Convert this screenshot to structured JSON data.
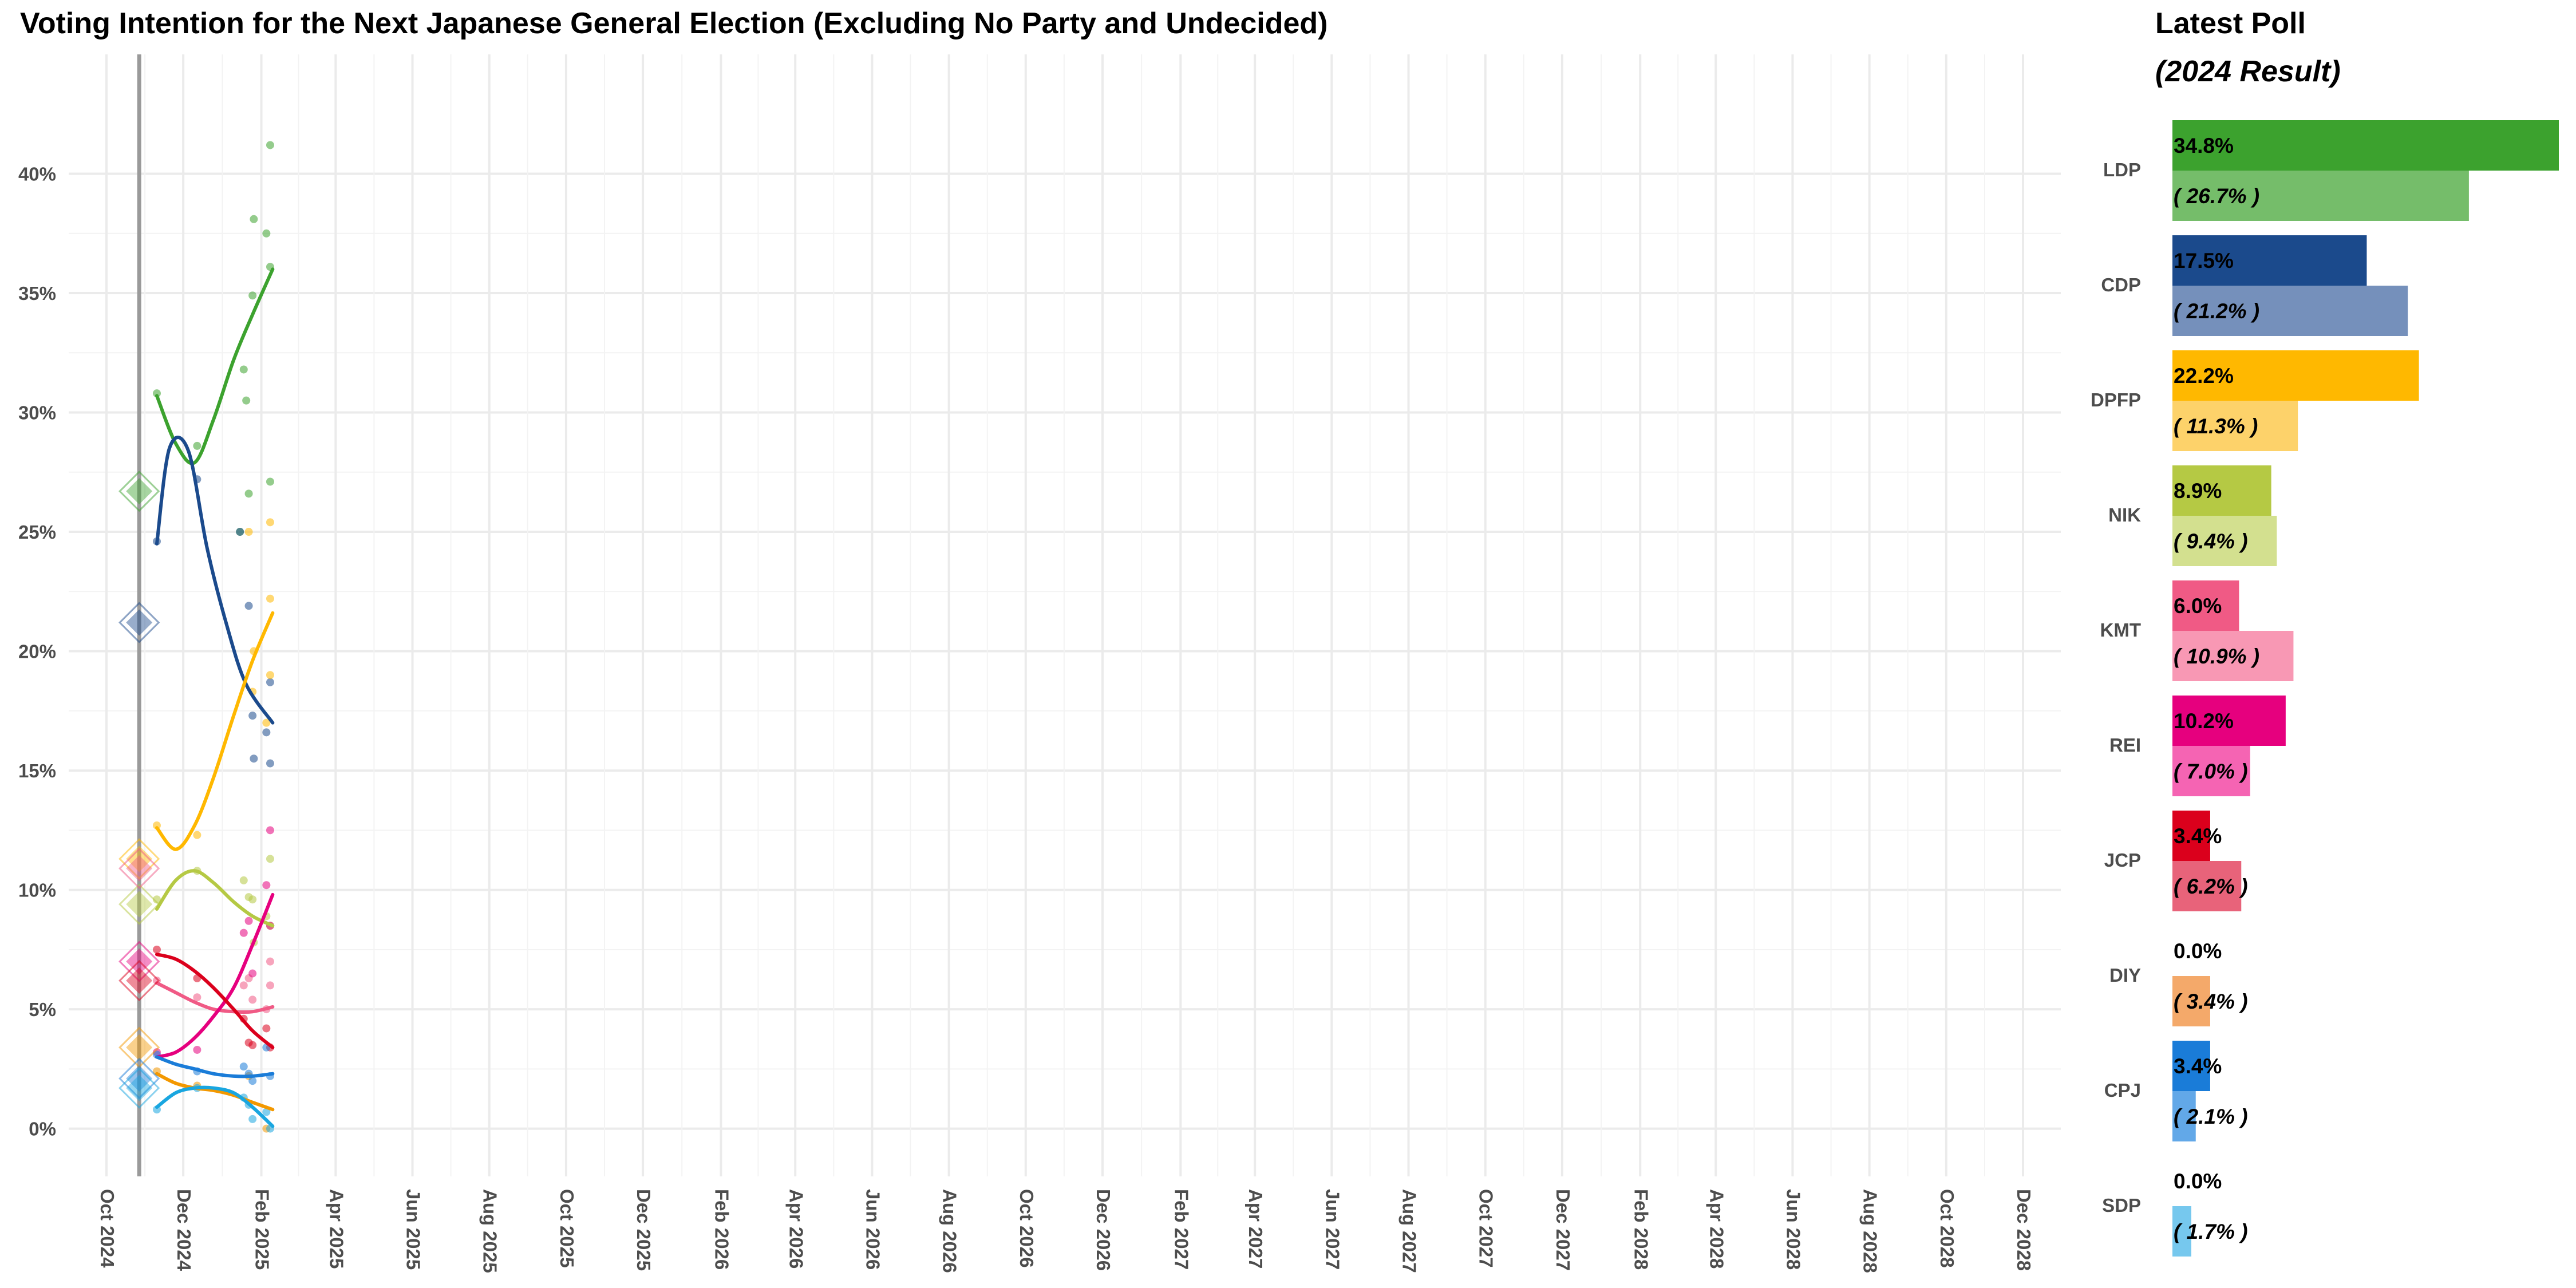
{
  "chart_data": [
    {
      "type": "line",
      "title": "Voting Intention for the Next Japanese General Election (Excluding No Party and Undecided)",
      "xlabel": "",
      "ylabel": "",
      "x_range": [
        "2024-09-01",
        "2028-12-31"
      ],
      "ylim": [
        -2,
        45
      ],
      "y_ticks": [
        0,
        5,
        10,
        15,
        20,
        25,
        30,
        35,
        40
      ],
      "y_tick_labels": [
        "0%",
        "5%",
        "10%",
        "15%",
        "20%",
        "25%",
        "30%",
        "35%",
        "40%"
      ],
      "x_ticks": [
        "2024-10-01",
        "2024-12-01",
        "2025-02-01",
        "2025-04-01",
        "2025-06-01",
        "2025-08-01",
        "2025-10-01",
        "2025-12-01",
        "2026-02-01",
        "2026-04-01",
        "2026-06-01",
        "2026-08-01",
        "2026-10-01",
        "2026-12-01",
        "2027-02-01",
        "2027-04-01",
        "2027-06-01",
        "2027-08-01",
        "2027-10-01",
        "2027-12-01",
        "2028-02-01",
        "2028-04-01",
        "2028-06-01",
        "2028-08-01",
        "2028-10-01",
        "2028-12-01"
      ],
      "x_tick_labels": [
        "Oct 2024",
        "Dec 2024",
        "Feb 2025",
        "Apr 2025",
        "Jun 2025",
        "Aug 2025",
        "Oct 2025",
        "Dec 2025",
        "Feb 2026",
        "Apr 2026",
        "Jun 2026",
        "Aug 2026",
        "Oct 2026",
        "Dec 2026",
        "Feb 2027",
        "Apr 2027",
        "Jun 2027",
        "Aug 2027",
        "Oct 2027",
        "Dec 2027",
        "Feb 2028",
        "Apr 2028",
        "Jun 2028",
        "Aug 2028",
        "Oct 2028",
        "Dec 2028"
      ],
      "grid": true,
      "election_date": "2024-10-27",
      "series": [
        {
          "party": "LDP",
          "color": "#3ca22e",
          "result": 26.7,
          "trend": [
            [
              "2024-11-10",
              30.7
            ],
            [
              "2024-11-25",
              28.7
            ],
            [
              "2024-12-10",
              27.9
            ],
            [
              "2024-12-25",
              29.7
            ],
            [
              "2025-01-10",
              32.2
            ],
            [
              "2025-01-25",
              34.1
            ],
            [
              "2025-02-10",
              36.0
            ]
          ],
          "polls": [
            [
              "2024-11-10",
              30.8
            ],
            [
              "2024-12-12",
              28.6
            ],
            [
              "2025-01-15",
              25.0
            ],
            [
              "2025-01-18",
              31.8
            ],
            [
              "2025-01-20",
              30.5
            ],
            [
              "2025-01-22",
              26.6
            ],
            [
              "2025-01-25",
              34.9
            ],
            [
              "2025-01-26",
              38.1
            ],
            [
              "2025-02-05",
              37.5
            ],
            [
              "2025-02-08",
              41.2
            ],
            [
              "2025-02-08",
              36.1
            ],
            [
              "2025-02-08",
              27.1
            ]
          ]
        },
        {
          "party": "CDP",
          "color": "#1b4a8c",
          "result": 21.2,
          "trend": [
            [
              "2024-11-10",
              24.5
            ],
            [
              "2024-11-20",
              28.5
            ],
            [
              "2024-12-05",
              28.4
            ],
            [
              "2024-12-20",
              24.3
            ],
            [
              "2025-01-05",
              21.0
            ],
            [
              "2025-01-20",
              18.6
            ],
            [
              "2025-02-10",
              17.0
            ]
          ],
          "polls": [
            [
              "2024-11-10",
              24.6
            ],
            [
              "2024-12-12",
              27.2
            ],
            [
              "2025-01-15",
              25.0
            ],
            [
              "2025-01-22",
              21.9
            ],
            [
              "2025-01-25",
              17.3
            ],
            [
              "2025-01-26",
              15.5
            ],
            [
              "2025-02-05",
              16.6
            ],
            [
              "2025-02-08",
              18.7
            ],
            [
              "2025-02-08",
              15.3
            ]
          ]
        },
        {
          "party": "DPFP",
          "color": "#ffb800",
          "result": 11.3,
          "trend": [
            [
              "2024-11-10",
              12.6
            ],
            [
              "2024-11-25",
              11.7
            ],
            [
              "2024-12-10",
              12.7
            ],
            [
              "2024-12-25",
              14.7
            ],
            [
              "2025-01-10",
              17.3
            ],
            [
              "2025-01-25",
              19.6
            ],
            [
              "2025-02-10",
              21.6
            ]
          ],
          "polls": [
            [
              "2024-11-10",
              12.7
            ],
            [
              "2024-12-12",
              12.3
            ],
            [
              "2025-01-22",
              25.0
            ],
            [
              "2025-01-25",
              18.3
            ],
            [
              "2025-01-26",
              20.0
            ],
            [
              "2025-02-05",
              17.0
            ],
            [
              "2025-02-08",
              22.2
            ],
            [
              "2025-02-08",
              25.4
            ],
            [
              "2025-02-08",
              19.0
            ]
          ]
        },
        {
          "party": "NIK",
          "color": "#b5c944",
          "result": 9.4,
          "trend": [
            [
              "2024-11-10",
              9.2
            ],
            [
              "2024-11-25",
              10.4
            ],
            [
              "2024-12-10",
              10.8
            ],
            [
              "2024-12-25",
              10.3
            ],
            [
              "2025-01-10",
              9.5
            ],
            [
              "2025-01-25",
              8.9
            ],
            [
              "2025-02-10",
              8.5
            ]
          ],
          "polls": [
            [
              "2024-11-10",
              9.6
            ],
            [
              "2024-12-12",
              10.8
            ],
            [
              "2025-01-18",
              10.4
            ],
            [
              "2025-01-22",
              9.7
            ],
            [
              "2025-01-25",
              9.6
            ],
            [
              "2025-01-26",
              7.8
            ],
            [
              "2025-02-05",
              8.9
            ],
            [
              "2025-02-08",
              11.3
            ],
            [
              "2025-02-08",
              8.5
            ]
          ]
        },
        {
          "party": "KMT",
          "color": "#f05a85",
          "result": 10.9,
          "trend": [
            [
              "2024-11-10",
              6.1
            ],
            [
              "2024-11-25",
              5.7
            ],
            [
              "2024-12-10",
              5.3
            ],
            [
              "2024-12-25",
              5.0
            ],
            [
              "2025-01-10",
              4.9
            ],
            [
              "2025-01-25",
              4.9
            ],
            [
              "2025-02-10",
              5.1
            ]
          ],
          "polls": [
            [
              "2024-11-10",
              6.2
            ],
            [
              "2024-12-12",
              5.5
            ],
            [
              "2025-01-18",
              6.0
            ],
            [
              "2025-01-22",
              6.3
            ],
            [
              "2025-01-25",
              5.4
            ],
            [
              "2025-02-05",
              5.0
            ],
            [
              "2025-02-08",
              6.0
            ],
            [
              "2025-02-08",
              7.0
            ]
          ]
        },
        {
          "party": "REI",
          "color": "#e6007e",
          "result": 7.0,
          "trend": [
            [
              "2024-11-10",
              3.0
            ],
            [
              "2024-11-25",
              3.2
            ],
            [
              "2024-12-10",
              3.8
            ],
            [
              "2024-12-25",
              4.7
            ],
            [
              "2025-01-10",
              5.9
            ],
            [
              "2025-01-25",
              7.7
            ],
            [
              "2025-02-10",
              9.8
            ]
          ],
          "polls": [
            [
              "2024-11-10",
              3.2
            ],
            [
              "2024-12-12",
              3.3
            ],
            [
              "2025-01-18",
              8.2
            ],
            [
              "2025-01-22",
              8.7
            ],
            [
              "2025-01-25",
              6.5
            ],
            [
              "2025-02-05",
              10.2
            ],
            [
              "2025-02-08",
              12.5
            ],
            [
              "2025-02-08",
              8.5
            ]
          ]
        },
        {
          "party": "JCP",
          "color": "#db001c",
          "result": 6.2,
          "trend": [
            [
              "2024-11-10",
              7.3
            ],
            [
              "2024-11-25",
              7.1
            ],
            [
              "2024-12-10",
              6.6
            ],
            [
              "2024-12-25",
              5.9
            ],
            [
              "2025-01-10",
              5.0
            ],
            [
              "2025-01-25",
              4.1
            ],
            [
              "2025-02-10",
              3.4
            ]
          ],
          "polls": [
            [
              "2024-11-10",
              7.5
            ],
            [
              "2024-12-12",
              6.3
            ],
            [
              "2025-01-18",
              4.6
            ],
            [
              "2025-01-22",
              3.6
            ],
            [
              "2025-01-25",
              3.5
            ],
            [
              "2025-02-05",
              4.2
            ],
            [
              "2025-02-08",
              3.4
            ]
          ]
        },
        {
          "party": "DIY",
          "color": "#f39800",
          "result": 3.4,
          "trend": [
            [
              "2024-11-10",
              2.3
            ],
            [
              "2024-11-25",
              1.9
            ],
            [
              "2024-12-10",
              1.7
            ],
            [
              "2024-12-25",
              1.6
            ],
            [
              "2025-01-10",
              1.4
            ],
            [
              "2025-01-25",
              1.1
            ],
            [
              "2025-02-10",
              0.8
            ]
          ],
          "polls": [
            [
              "2024-11-10",
              2.4
            ],
            [
              "2024-12-12",
              1.8
            ],
            [
              "2025-01-22",
              2.2
            ],
            [
              "2025-02-05",
              0.0
            ]
          ]
        },
        {
          "party": "CPJ",
          "color": "#1a7cd8",
          "result": 2.1,
          "trend": [
            [
              "2024-11-10",
              3.0
            ],
            [
              "2024-11-25",
              2.7
            ],
            [
              "2024-12-10",
              2.5
            ],
            [
              "2024-12-25",
              2.3
            ],
            [
              "2025-01-10",
              2.2
            ],
            [
              "2025-01-25",
              2.2
            ],
            [
              "2025-02-10",
              2.3
            ]
          ],
          "polls": [
            [
              "2024-11-10",
              3.1
            ],
            [
              "2024-12-12",
              2.4
            ],
            [
              "2025-01-18",
              2.6
            ],
            [
              "2025-01-22",
              2.3
            ],
            [
              "2025-01-25",
              2.0
            ],
            [
              "2025-02-05",
              3.4
            ],
            [
              "2025-02-08",
              2.2
            ]
          ]
        },
        {
          "party": "SDP",
          "color": "#19a6e0",
          "result": 1.7,
          "trend": [
            [
              "2024-11-10",
              0.9
            ],
            [
              "2024-11-25",
              1.5
            ],
            [
              "2024-12-10",
              1.7
            ],
            [
              "2024-12-25",
              1.7
            ],
            [
              "2025-01-10",
              1.5
            ],
            [
              "2025-01-25",
              0.9
            ],
            [
              "2025-02-10",
              0.1
            ]
          ],
          "polls": [
            [
              "2024-11-10",
              0.8
            ],
            [
              "2024-12-12",
              1.7
            ],
            [
              "2025-01-18",
              1.3
            ],
            [
              "2025-01-22",
              1.0
            ],
            [
              "2025-01-25",
              0.4
            ],
            [
              "2025-02-05",
              0.7
            ],
            [
              "2025-02-08",
              0.0
            ]
          ]
        }
      ]
    },
    {
      "type": "bar",
      "title": "Latest Poll",
      "subtitle": "(2024 Result)",
      "categories": [
        "LDP",
        "CDP",
        "DPFP",
        "NIK",
        "KMT",
        "REI",
        "JCP",
        "DIY",
        "CPJ",
        "SDP"
      ],
      "series": [
        {
          "name": "Latest Poll",
          "values": [
            34.8,
            17.5,
            22.2,
            8.9,
            6.0,
            10.2,
            3.4,
            0.0,
            3.4,
            0.0
          ],
          "labels": [
            "34.8%",
            "17.5%",
            "22.2%",
            "8.9%",
            "6.0%",
            "10.2%",
            "3.4%",
            "0.0%",
            "3.4%",
            "0.0%"
          ],
          "colors": [
            "#3ca22e",
            "#1b4a8c",
            "#ffb800",
            "#b5c944",
            "#f05a85",
            "#e6007e",
            "#db001c",
            "#f39800",
            "#1a7cd8",
            "#19a6e0"
          ]
        },
        {
          "name": "2024 Result",
          "values": [
            26.7,
            21.2,
            11.3,
            9.4,
            10.9,
            7.0,
            6.2,
            3.4,
            2.1,
            1.7
          ],
          "labels": [
            "( 26.7% )",
            "( 21.2% )",
            "( 11.3% )",
            "( 9.4% )",
            "( 10.9% )",
            "( 7.0% )",
            "( 6.2% )",
            "( 3.4% )",
            "( 2.1% )",
            "( 1.7% )"
          ],
          "colors": [
            "#75bd6a",
            "#7590bb",
            "#fdd26a",
            "#d3e08f",
            "#f898b4",
            "#f564b3",
            "#e8637a",
            "#f4a96a",
            "#62a8e8",
            "#76c8ee"
          ]
        }
      ],
      "xlim": [
        0,
        34.8
      ]
    }
  ]
}
